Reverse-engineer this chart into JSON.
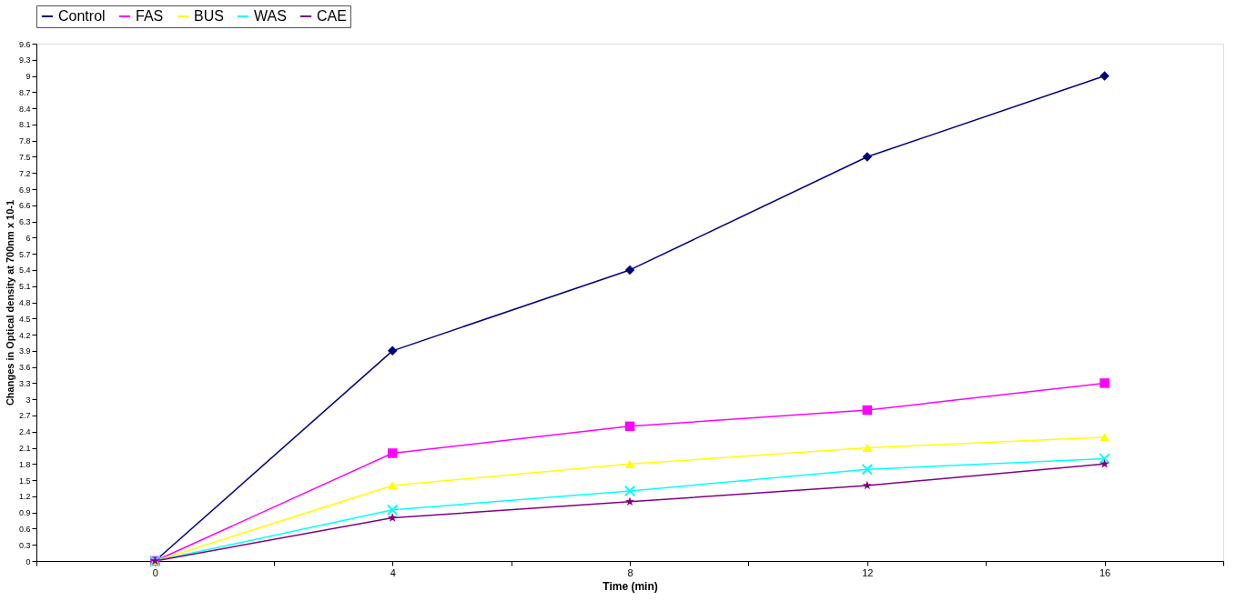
{
  "chart_data": {
    "type": "line",
    "xlabel": "Time (min)",
    "ylabel": "Changes in Optical density at 700nm x 10-1",
    "x": [
      0,
      4,
      8,
      12,
      16
    ],
    "xlim": [
      -2,
      18
    ],
    "xticks": [
      {
        "value": -2,
        "label": null
      },
      0,
      {
        "value": 2,
        "label": null
      },
      4,
      {
        "value": 6,
        "label": null
      },
      8,
      {
        "value": 10,
        "label": null
      },
      12,
      {
        "value": 14,
        "label": null
      },
      16,
      {
        "value": 18,
        "label": null
      }
    ],
    "ylim": [
      0,
      9.6
    ],
    "yticks": [
      0,
      0.3,
      0.6,
      0.9,
      1.2,
      1.5,
      1.8,
      2.1,
      2.4,
      2.7,
      3,
      3.3,
      3.6,
      3.9,
      4.2,
      4.5,
      4.8,
      5.1,
      5.4,
      5.7,
      6,
      6.3,
      6.6,
      6.9,
      7.2,
      7.5,
      7.8,
      8.1,
      8.4,
      8.7,
      9,
      9.3,
      9.6
    ],
    "grid": false,
    "legend": "top",
    "line_style": "solid",
    "series": [
      {
        "name": "Control",
        "color": "#000080",
        "marker": "diamond",
        "values": [
          0,
          3.9,
          5.4,
          7.5,
          9
        ]
      },
      {
        "name": "FAS",
        "color": "#ff00ff",
        "marker": "square",
        "values": [
          0,
          2.0,
          2.5,
          2.8,
          3.3
        ]
      },
      {
        "name": "BUS",
        "color": "#ffff00",
        "marker": "triangle",
        "values": [
          0,
          1.4,
          1.8,
          2.1,
          2.3
        ]
      },
      {
        "name": "WAS",
        "color": "#00ffff",
        "marker": "cross",
        "values": [
          0,
          0.95,
          1.3,
          1.7,
          1.9
        ]
      },
      {
        "name": "CAE",
        "color": "#800080",
        "marker": "star",
        "values": [
          0,
          0.8,
          1.1,
          1.4,
          1.8
        ]
      }
    ]
  }
}
